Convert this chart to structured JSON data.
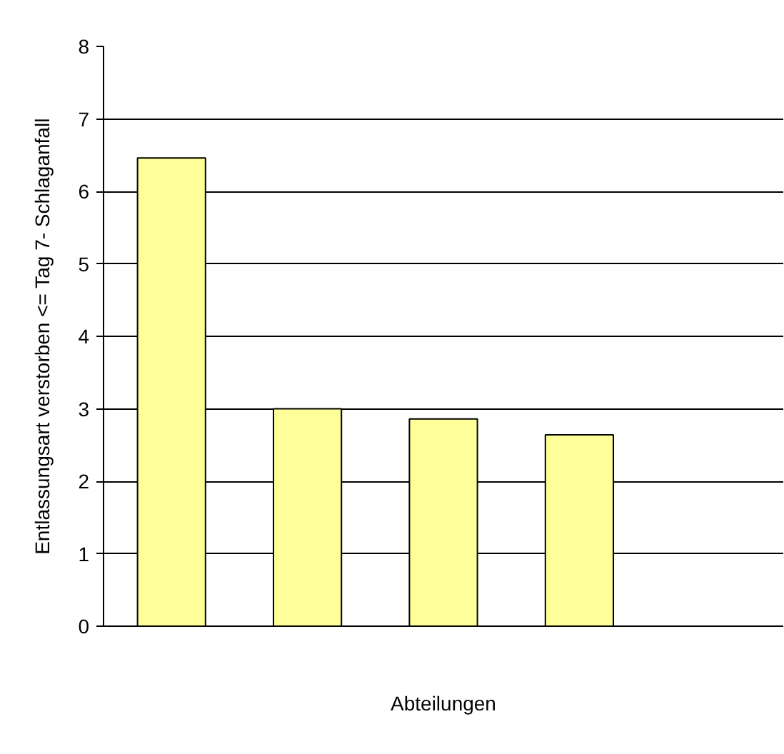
{
  "chart_data": {
    "type": "bar",
    "ylabel": "Entlassungsart verstorben <= Tag 7- Schlaganfall",
    "xlabel": "Abteilungen",
    "categories": [
      null,
      null,
      null,
      null,
      null
    ],
    "values": [
      6.46,
      3.0,
      2.86,
      2.64,
      null
    ],
    "color": "#ffff99",
    "ylim": [
      0,
      8
    ],
    "yticks": [
      0,
      1,
      2,
      3,
      4,
      5,
      6,
      7,
      8
    ],
    "grid": "y"
  }
}
